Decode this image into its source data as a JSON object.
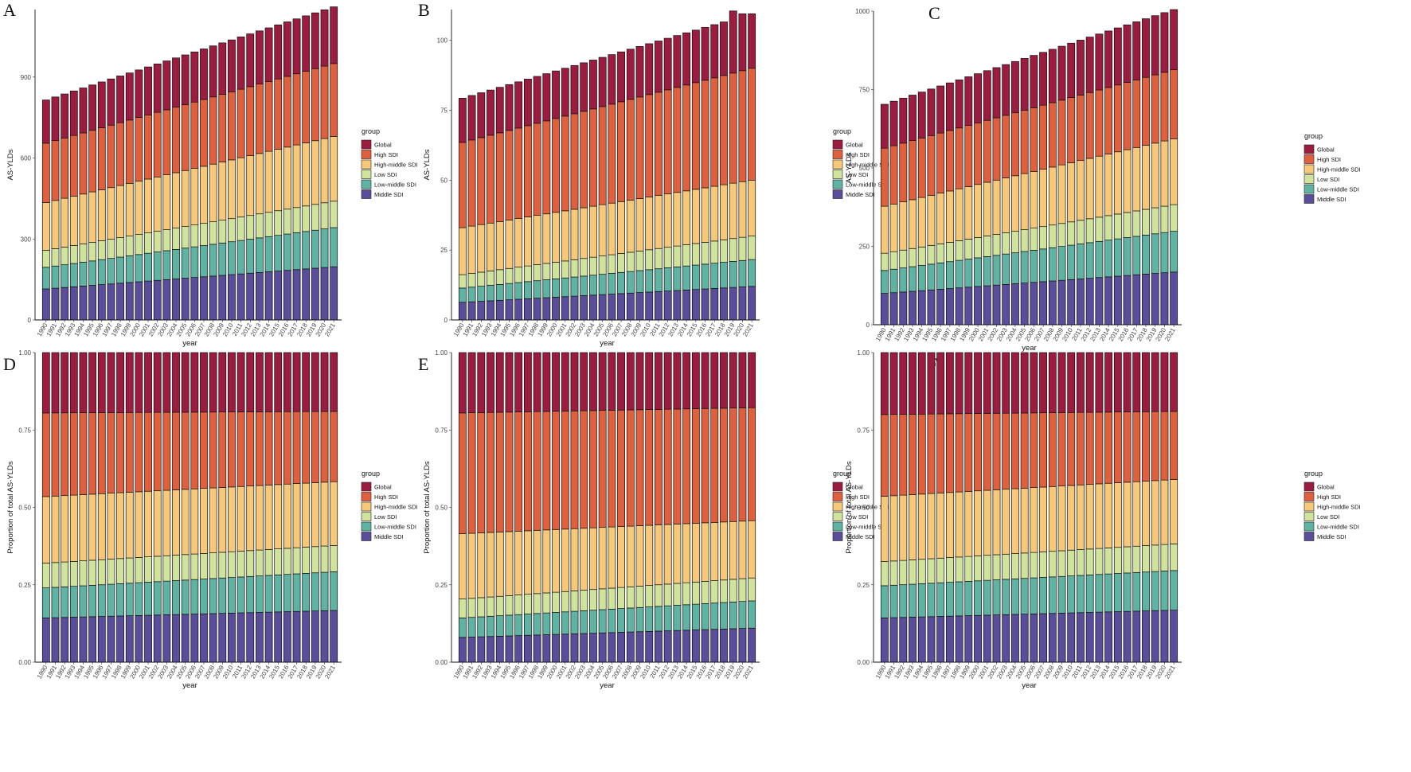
{
  "figure": {
    "colors": {
      "Global": "#9b1c3f",
      "High SDI": "#e0603e",
      "High-middle SDI": "#f8c879",
      "Low SDI": "#cfe39b",
      "Low-middle SDI": "#5fb3a2",
      "Middle SDI": "#5a4d9b"
    },
    "legend_title": "group",
    "legend_entries": [
      "Global",
      "High SDI",
      "High-middle SDI",
      "Low SDI",
      "Low-middle SDI",
      "Middle SDI"
    ],
    "stack_order_bottom_to_top": [
      "Middle SDI",
      "Low-middle SDI",
      "Low SDI",
      "High-middle SDI",
      "High SDI",
      "Global"
    ]
  },
  "chart_data": [
    {
      "panel": "A",
      "type": "bar",
      "stacked": true,
      "xlabel": "year",
      "ylabel": "AS-YLDs",
      "yticks": [
        0,
        300,
        600,
        900
      ],
      "ylim": [
        0,
        1150
      ],
      "x_start": 1990,
      "x_end": 2021,
      "start_cum": [
        115,
        195,
        258,
        435,
        655,
        815
      ],
      "end_cum": [
        197,
        342,
        440,
        680,
        950,
        1160
      ]
    },
    {
      "panel": "B",
      "type": "bar",
      "stacked": true,
      "xlabel": "year",
      "ylabel": "AS-YLDs",
      "yticks": [
        0,
        25,
        50,
        75,
        100
      ],
      "ylim": [
        0,
        111
      ],
      "x_start": 1990,
      "x_end": 2021,
      "start_cum": [
        6.3,
        11.4,
        16.2,
        33,
        63.5,
        79.3
      ],
      "end_cum": [
        12,
        21.6,
        30,
        50,
        90,
        109.5
      ],
      "peak_total": {
        "year": 2019,
        "value": 110.5
      }
    },
    {
      "panel": "C",
      "type": "bar",
      "stacked": true,
      "xlabel": "year",
      "ylabel": "AS-YLDs",
      "yticks": [
        0,
        250,
        500,
        750,
        1000
      ],
      "ylim": [
        0,
        1000
      ],
      "x_start": 1990,
      "x_end": 2021,
      "start_cum": [
        100,
        173,
        228,
        378,
        563,
        703
      ],
      "end_cum": [
        168,
        298,
        383,
        593,
        813,
        1005
      ]
    },
    {
      "panel": "D",
      "type": "bar",
      "stacked": true,
      "xlabel": "year",
      "ylabel": "Proportion of total AS-YLDs",
      "yticks": [
        "0.00",
        "0.25",
        "0.50",
        "0.75",
        "1.00"
      ],
      "ylim": [
        0,
        1
      ],
      "x_start": 1990,
      "x_end": 2021,
      "start_cum": [
        0.143,
        0.24,
        0.32,
        0.535,
        0.805,
        1.0
      ],
      "end_cum": [
        0.167,
        0.292,
        0.377,
        0.583,
        0.81,
        1.0
      ]
    },
    {
      "panel": "E",
      "type": "bar",
      "stacked": true,
      "xlabel": "year",
      "ylabel": "Proportion of total AS-YLDs",
      "yticks": [
        "0.00",
        "0.25",
        "0.50",
        "0.75",
        "1.00"
      ],
      "ylim": [
        0,
        1
      ],
      "x_start": 1990,
      "x_end": 2021,
      "start_cum": [
        0.08,
        0.143,
        0.204,
        0.415,
        0.805,
        1.0
      ],
      "end_cum": [
        0.11,
        0.198,
        0.272,
        0.457,
        0.822,
        1.0
      ]
    },
    {
      "panel": "F",
      "type": "bar",
      "stacked": true,
      "xlabel": "year",
      "ylabel": "Proportion of total AS-YLDs",
      "yticks": [
        "0.00",
        "0.25",
        "0.50",
        "0.75",
        "1.00"
      ],
      "ylim": [
        0,
        1
      ],
      "x_start": 1990,
      "x_end": 2021,
      "start_cum": [
        0.143,
        0.247,
        0.325,
        0.536,
        0.8,
        1.0
      ],
      "end_cum": [
        0.168,
        0.296,
        0.382,
        0.59,
        0.81,
        1.0
      ]
    }
  ]
}
